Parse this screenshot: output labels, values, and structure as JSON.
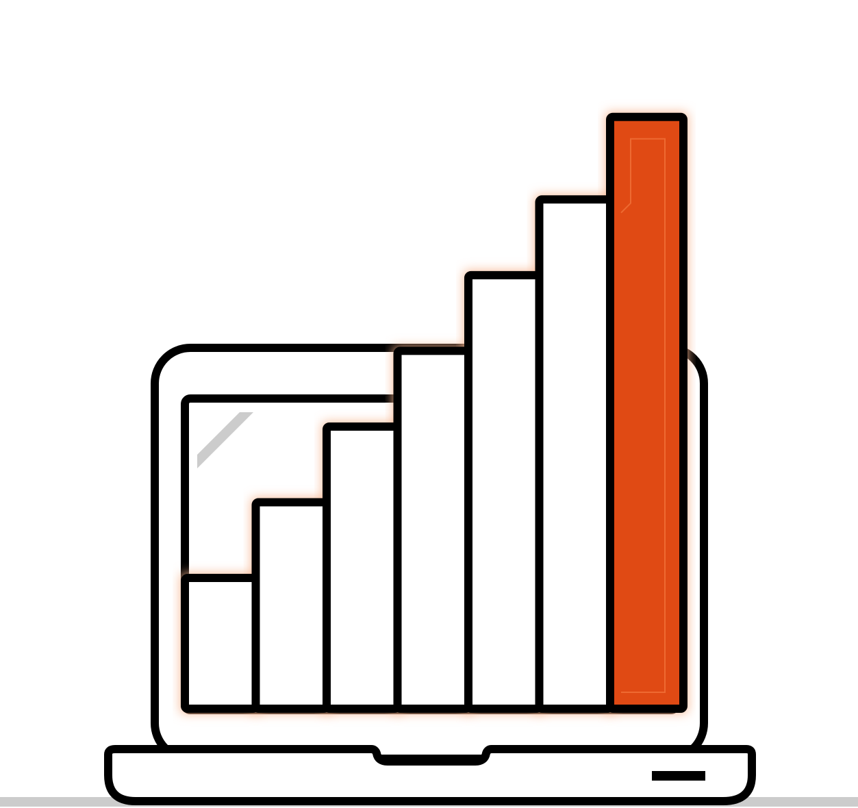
{
  "illustration": {
    "subject": "laptop-with-rising-bar-chart-icon",
    "bar_count": 7,
    "bar_levels": [
      0.19,
      0.3,
      0.41,
      0.52,
      0.63,
      0.74,
      0.86
    ],
    "highlighted_bar": 7,
    "colors": {
      "outline": "#000000",
      "fill": "#ffffff",
      "accent": "#e04a14",
      "accent_glow": "#f6b48e",
      "screen_glare": "#cccccc",
      "floor_shadow": "#cccccc"
    }
  }
}
